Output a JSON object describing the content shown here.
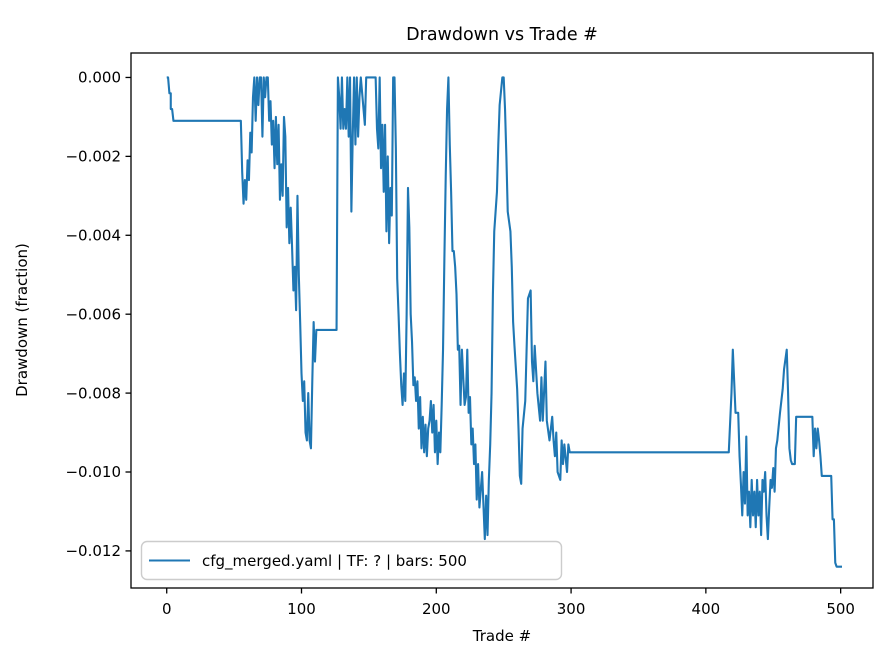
{
  "title": "Drawdown vs Trade #",
  "legend": {
    "label": "cfg_merged.yaml | TF: ? | bars: 500"
  },
  "line_color": "#1f77b4",
  "chart_data": {
    "type": "line",
    "title": "Drawdown vs Trade #",
    "xlabel": "Trade #",
    "ylabel": "Drawdown (fraction)",
    "xlim": [
      -26.5,
      524
    ],
    "ylim": [
      -0.01294,
      0.00062
    ],
    "grid": false,
    "legend_position": "lower left",
    "xticks": [
      0,
      100,
      200,
      300,
      400,
      500
    ],
    "xtick_labels": [
      "0",
      "100",
      "200",
      "300",
      "400",
      "500"
    ],
    "yticks": [
      0,
      -0.002,
      -0.004,
      -0.006,
      -0.008,
      -0.01,
      -0.012
    ],
    "ytick_labels": [
      "0.000",
      "−0.002",
      "−0.004",
      "−0.006",
      "−0.008",
      "−0.010",
      "−0.012"
    ],
    "series": [
      {
        "name": "cfg_merged.yaml | TF: ? | bars: 500",
        "color": "#1f77b4",
        "points": [
          [
            0,
            0
          ],
          [
            1,
            0
          ],
          [
            2,
            -0.0004
          ],
          [
            3,
            -0.0004
          ],
          [
            3,
            -0.0008
          ],
          [
            4,
            -0.0008
          ],
          [
            5,
            -0.0011
          ],
          [
            55,
            -0.0011
          ],
          [
            56,
            -0.0024
          ],
          [
            57,
            -0.0032
          ],
          [
            58,
            -0.0026
          ],
          [
            59,
            -0.0031
          ],
          [
            60,
            -0.0021
          ],
          [
            61,
            -0.0026
          ],
          [
            62,
            -0.0014
          ],
          [
            63,
            -0.0019
          ],
          [
            64,
            -0.0005
          ],
          [
            65,
            0
          ],
          [
            66,
            -0.0011
          ],
          [
            67,
            0
          ],
          [
            68,
            -0.0007
          ],
          [
            69,
            0
          ],
          [
            70,
            0
          ],
          [
            71,
            -0.0015
          ],
          [
            72,
            0
          ],
          [
            73,
            -0.0005
          ],
          [
            74,
            0
          ],
          [
            75,
            0
          ],
          [
            76,
            -0.0011
          ],
          [
            77,
            -0.0006
          ],
          [
            78,
            -0.0017
          ],
          [
            79,
            -0.0011
          ],
          [
            80,
            -0.0023
          ],
          [
            81,
            -0.001
          ],
          [
            82,
            -0.0022
          ],
          [
            83,
            -0.0012
          ],
          [
            84,
            -0.0031
          ],
          [
            85,
            -0.0022
          ],
          [
            86,
            -0.003
          ],
          [
            87,
            -0.001
          ],
          [
            88,
            -0.0015
          ],
          [
            89,
            -0.0038
          ],
          [
            90,
            -0.0028
          ],
          [
            91,
            -0.0042
          ],
          [
            92,
            -0.0033
          ],
          [
            93,
            -0.0043
          ],
          [
            94,
            -0.0054
          ],
          [
            95,
            -0.0048
          ],
          [
            96,
            -0.0059
          ],
          [
            97,
            -0.003
          ],
          [
            98,
            -0.005
          ],
          [
            99,
            -0.0062
          ],
          [
            100,
            -0.0075
          ],
          [
            101,
            -0.0082
          ],
          [
            102,
            -0.0077
          ],
          [
            103,
            -0.009
          ],
          [
            104,
            -0.0092
          ],
          [
            105,
            -0.008
          ],
          [
            106,
            -0.0092
          ],
          [
            107,
            -0.0094
          ],
          [
            108,
            -0.0077
          ],
          [
            109,
            -0.0062
          ],
          [
            110,
            -0.0072
          ],
          [
            111,
            -0.0064
          ],
          [
            126,
            -0.0064
          ],
          [
            127,
            0
          ],
          [
            128,
            -0.0005
          ],
          [
            129,
            -0.0013
          ],
          [
            130,
            0
          ],
          [
            131,
            -0.0013
          ],
          [
            132,
            -0.0008
          ],
          [
            133,
            -0.0013
          ],
          [
            134,
            0
          ],
          [
            135,
            -0.0015
          ],
          [
            136,
            0
          ],
          [
            137,
            -0.0034
          ],
          [
            138,
            -0.0015
          ],
          [
            139,
            0
          ],
          [
            140,
            -0.0017
          ],
          [
            141,
            0
          ],
          [
            142,
            -0.0015
          ],
          [
            143,
            -0.0005
          ],
          [
            144,
            0
          ],
          [
            147,
            -0.0012
          ],
          [
            148,
            0
          ],
          [
            155,
            0
          ],
          [
            156,
            -0.0013
          ],
          [
            157,
            -0.0018
          ],
          [
            158,
            0
          ],
          [
            159,
            -0.0023
          ],
          [
            160,
            -0.0012
          ],
          [
            161,
            -0.0029
          ],
          [
            162,
            -0.0012
          ],
          [
            163,
            -0.0039
          ],
          [
            164,
            -0.002
          ],
          [
            165,
            -0.0042
          ],
          [
            166,
            -0.0028
          ],
          [
            167,
            -0.0035
          ],
          [
            168,
            0
          ],
          [
            169,
            0
          ],
          [
            170,
            -0.0018
          ],
          [
            171,
            -0.0051
          ],
          [
            172,
            -0.006
          ],
          [
            173,
            -0.007
          ],
          [
            174,
            -0.0078
          ],
          [
            175,
            -0.0083
          ],
          [
            176,
            -0.0075
          ],
          [
            177,
            -0.0082
          ],
          [
            178,
            -0.006
          ],
          [
            179,
            -0.0028
          ],
          [
            180,
            -0.0038
          ],
          [
            181,
            -0.006
          ],
          [
            182,
            -0.0067
          ],
          [
            183,
            -0.0078
          ],
          [
            184,
            -0.0076
          ],
          [
            185,
            -0.0082
          ],
          [
            186,
            -0.0077
          ],
          [
            187,
            -0.0089
          ],
          [
            188,
            -0.0081
          ],
          [
            189,
            -0.0094
          ],
          [
            190,
            -0.0086
          ],
          [
            191,
            -0.0095
          ],
          [
            192,
            -0.0088
          ],
          [
            193,
            -0.0096
          ],
          [
            194,
            -0.0089
          ],
          [
            195,
            -0.0087
          ],
          [
            196,
            -0.0082
          ],
          [
            197,
            -0.009
          ],
          [
            198,
            -0.0083
          ],
          [
            199,
            -0.0095
          ],
          [
            200,
            -0.0087
          ],
          [
            201,
            -0.0098
          ],
          [
            202,
            -0.009
          ],
          [
            203,
            -0.0095
          ],
          [
            204,
            -0.0083
          ],
          [
            205,
            -0.0069
          ],
          [
            206,
            -0.0046
          ],
          [
            207,
            -0.0025
          ],
          [
            208,
            -0.0008
          ],
          [
            209,
            0
          ],
          [
            210,
            -0.0017
          ],
          [
            211,
            -0.0029
          ],
          [
            212,
            -0.0044
          ],
          [
            213,
            -0.0044
          ],
          [
            214,
            -0.0048
          ],
          [
            215,
            -0.0055
          ],
          [
            216,
            -0.0069
          ],
          [
            217,
            -0.0068
          ],
          [
            218,
            -0.0083
          ],
          [
            219,
            -0.0069
          ],
          [
            221,
            -0.0083
          ],
          [
            222,
            -0.0081
          ],
          [
            223,
            -0.0069
          ],
          [
            224,
            -0.0085
          ],
          [
            225,
            -0.0081
          ],
          [
            226,
            -0.0093
          ],
          [
            227,
            -0.0089
          ],
          [
            228,
            -0.0098
          ],
          [
            229,
            -0.0093
          ],
          [
            230,
            -0.0107
          ],
          [
            231,
            -0.0098
          ],
          [
            232,
            -0.0109
          ],
          [
            234,
            -0.01
          ],
          [
            236,
            -0.0117
          ],
          [
            237,
            -0.0106
          ],
          [
            238,
            -0.0116
          ],
          [
            239,
            -0.0102
          ],
          [
            240,
            -0.0093
          ],
          [
            241,
            -0.008
          ],
          [
            242,
            -0.0055
          ],
          [
            243,
            -0.0039
          ],
          [
            245,
            -0.0029
          ],
          [
            246,
            -0.0017
          ],
          [
            247,
            -0.0007
          ],
          [
            249,
            0
          ],
          [
            250,
            0
          ],
          [
            251,
            -0.0008
          ],
          [
            252,
            -0.002
          ],
          [
            253,
            -0.0034
          ],
          [
            255,
            -0.0039
          ],
          [
            256,
            -0.0048
          ],
          [
            257,
            -0.0062
          ],
          [
            258,
            -0.0068
          ],
          [
            260,
            -0.0079
          ],
          [
            261,
            -0.0089
          ],
          [
            262,
            -0.0101
          ],
          [
            263,
            -0.0103
          ],
          [
            264,
            -0.0089
          ],
          [
            266,
            -0.0082
          ],
          [
            268,
            -0.0056
          ],
          [
            270,
            -0.0054
          ],
          [
            271,
            -0.0072
          ],
          [
            272,
            -0.0077
          ],
          [
            273,
            -0.0068
          ],
          [
            275,
            -0.008
          ],
          [
            277,
            -0.0087
          ],
          [
            278,
            -0.0076
          ],
          [
            279,
            -0.0087
          ],
          [
            281,
            -0.0072
          ],
          [
            282,
            -0.0087
          ],
          [
            284,
            -0.0092
          ],
          [
            286,
            -0.0086
          ],
          [
            287,
            -0.0092
          ],
          [
            288,
            -0.0096
          ],
          [
            289,
            -0.009
          ],
          [
            290,
            -0.01
          ],
          [
            292,
            -0.0102
          ],
          [
            293,
            -0.0092
          ],
          [
            294,
            -0.0098
          ],
          [
            295,
            -0.0093
          ],
          [
            297,
            -0.01
          ],
          [
            298,
            -0.0093
          ],
          [
            299,
            -0.0095
          ],
          [
            417,
            -0.0095
          ],
          [
            419,
            -0.008
          ],
          [
            420,
            -0.0069
          ],
          [
            421,
            -0.0077
          ],
          [
            422,
            -0.0085
          ],
          [
            424,
            -0.0085
          ],
          [
            425,
            -0.0096
          ],
          [
            426,
            -0.0103
          ],
          [
            427,
            -0.0111
          ],
          [
            428,
            -0.01
          ],
          [
            429,
            -0.0108
          ],
          [
            430,
            -0.0091
          ],
          [
            431,
            -0.0111
          ],
          [
            432,
            -0.0105
          ],
          [
            433,
            -0.0114
          ],
          [
            434,
            -0.0102
          ],
          [
            435,
            -0.0111
          ],
          [
            436,
            -0.0105
          ],
          [
            437,
            -0.0114
          ],
          [
            438,
            -0.0102
          ],
          [
            439,
            -0.0111
          ],
          [
            440,
            -0.0105
          ],
          [
            441,
            -0.0116
          ],
          [
            442,
            -0.0102
          ],
          [
            443,
            -0.0105
          ],
          [
            444,
            -0.01
          ],
          [
            445,
            -0.0111
          ],
          [
            446,
            -0.0117
          ],
          [
            447,
            -0.0109
          ],
          [
            448,
            -0.0102
          ],
          [
            449,
            -0.0104
          ],
          [
            450,
            -0.0099
          ],
          [
            451,
            -0.0105
          ],
          [
            452,
            -0.0094
          ],
          [
            453,
            -0.0092
          ],
          [
            455,
            -0.0085
          ],
          [
            457,
            -0.0079
          ],
          [
            458,
            -0.0074
          ],
          [
            460,
            -0.0069
          ],
          [
            461,
            -0.008
          ],
          [
            462,
            -0.0094
          ],
          [
            463,
            -0.0097
          ],
          [
            464,
            -0.0098
          ],
          [
            466,
            -0.0098
          ],
          [
            467,
            -0.0086
          ],
          [
            479,
            -0.0086
          ],
          [
            480,
            -0.0096
          ],
          [
            481,
            -0.0089
          ],
          [
            482,
            -0.0094
          ],
          [
            483,
            -0.0089
          ],
          [
            484,
            -0.0092
          ],
          [
            485,
            -0.0096
          ],
          [
            486,
            -0.0101
          ],
          [
            493,
            -0.0101
          ],
          [
            494,
            -0.0112
          ],
          [
            495,
            -0.0112
          ],
          [
            496,
            -0.0123
          ],
          [
            497,
            -0.0124
          ],
          [
            501,
            -0.0124
          ]
        ]
      }
    ]
  }
}
